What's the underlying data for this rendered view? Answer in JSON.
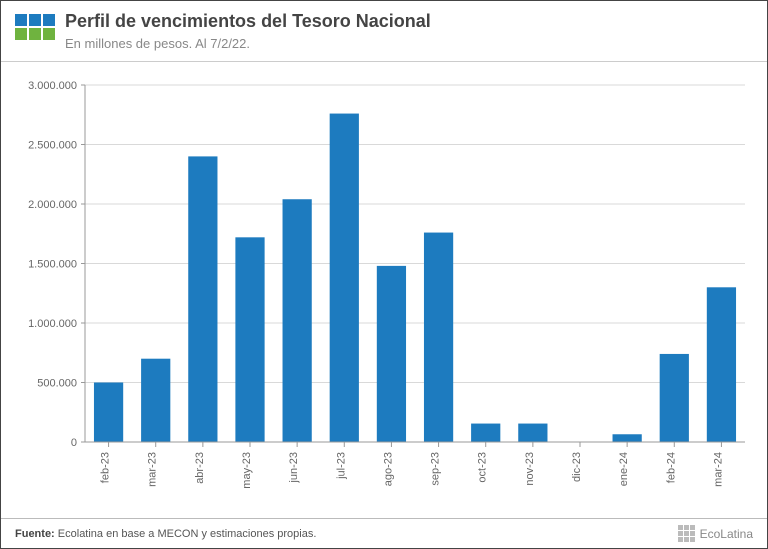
{
  "header": {
    "title": "Perfil de vencimientos del Tesoro Nacional",
    "subtitle": "En millones de pesos. Al 7/2/22.",
    "logo_colors": [
      "#1d7bbf",
      "#1d7bbf",
      "#1d7bbf",
      "#6fb33f",
      "#6fb33f",
      "#6fb33f"
    ]
  },
  "footer": {
    "source_label": "Fuente:",
    "source_text": " Ecolatina en base a MECON y estimaciones propias.",
    "brand": "EcoLatina"
  },
  "chart": {
    "type": "bar",
    "categories": [
      "feb-23",
      "mar-23",
      "abr-23",
      "may-23",
      "jun-23",
      "jul-23",
      "ago-23",
      "sep-23",
      "oct-23",
      "nov-23",
      "dic-23",
      "ene-24",
      "feb-24",
      "mar-24"
    ],
    "values": [
      500000,
      700000,
      2400000,
      1720000,
      2040000,
      2760000,
      1480000,
      1760000,
      155000,
      155000,
      0,
      65000,
      740000,
      1300000
    ],
    "bar_color": "#1d7bbf",
    "background_color": "#ffffff",
    "grid_color": "#d9d9d9",
    "axis_color": "#999999",
    "tick_label_color": "#666666",
    "ylim": [
      0,
      3000000
    ],
    "ytick_step": 500000,
    "ytick_format": "thousands-dot",
    "bar_width_ratio": 0.62,
    "label_fontsize": 11,
    "tick_fontsize": 11,
    "xlabel_rotation": 90
  }
}
